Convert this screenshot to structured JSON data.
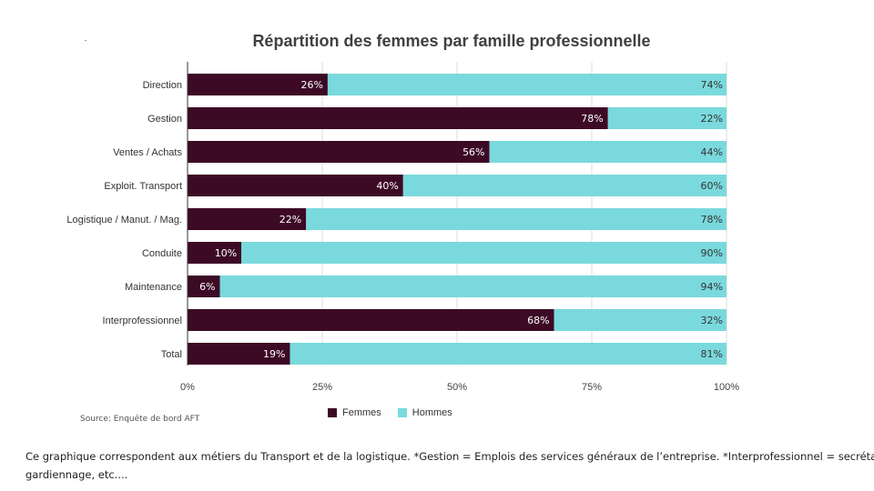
{
  "chart_data": {
    "type": "bar",
    "orientation": "horizontal",
    "stacked": "percent",
    "title": "Répartition des femmes par famille professionnelle",
    "categories": [
      "Direction",
      "Gestion",
      "Ventes / Achats",
      "Exploit. Transport",
      "Logistique / Manut. / Mag.",
      "Conduite",
      "Maintenance",
      "Interprofessionnel",
      "Total"
    ],
    "series": [
      {
        "name": "Femmes",
        "color": "#3d0a26",
        "values": [
          26,
          78,
          56,
          40,
          22,
          10,
          6,
          68,
          19
        ]
      },
      {
        "name": "Hommes",
        "color": "#7ad9dc",
        "values": [
          74,
          22,
          44,
          60,
          78,
          90,
          94,
          32,
          81
        ]
      }
    ],
    "xlim": [
      0,
      100
    ],
    "xticks": [
      "0%",
      "25%",
      "50%",
      "75%",
      "100%"
    ],
    "grid": true,
    "legend": "bottom"
  },
  "source": "Source: Enquête de bord AFT",
  "note_lines": [
    "Ce graphique correspondent aux métiers du Transport et de la logistique. *Gestion = Emplois des services généraux de l’entreprise. *Interprofessionnel = secrétariat,",
    "gardiennage, etc...."
  ]
}
